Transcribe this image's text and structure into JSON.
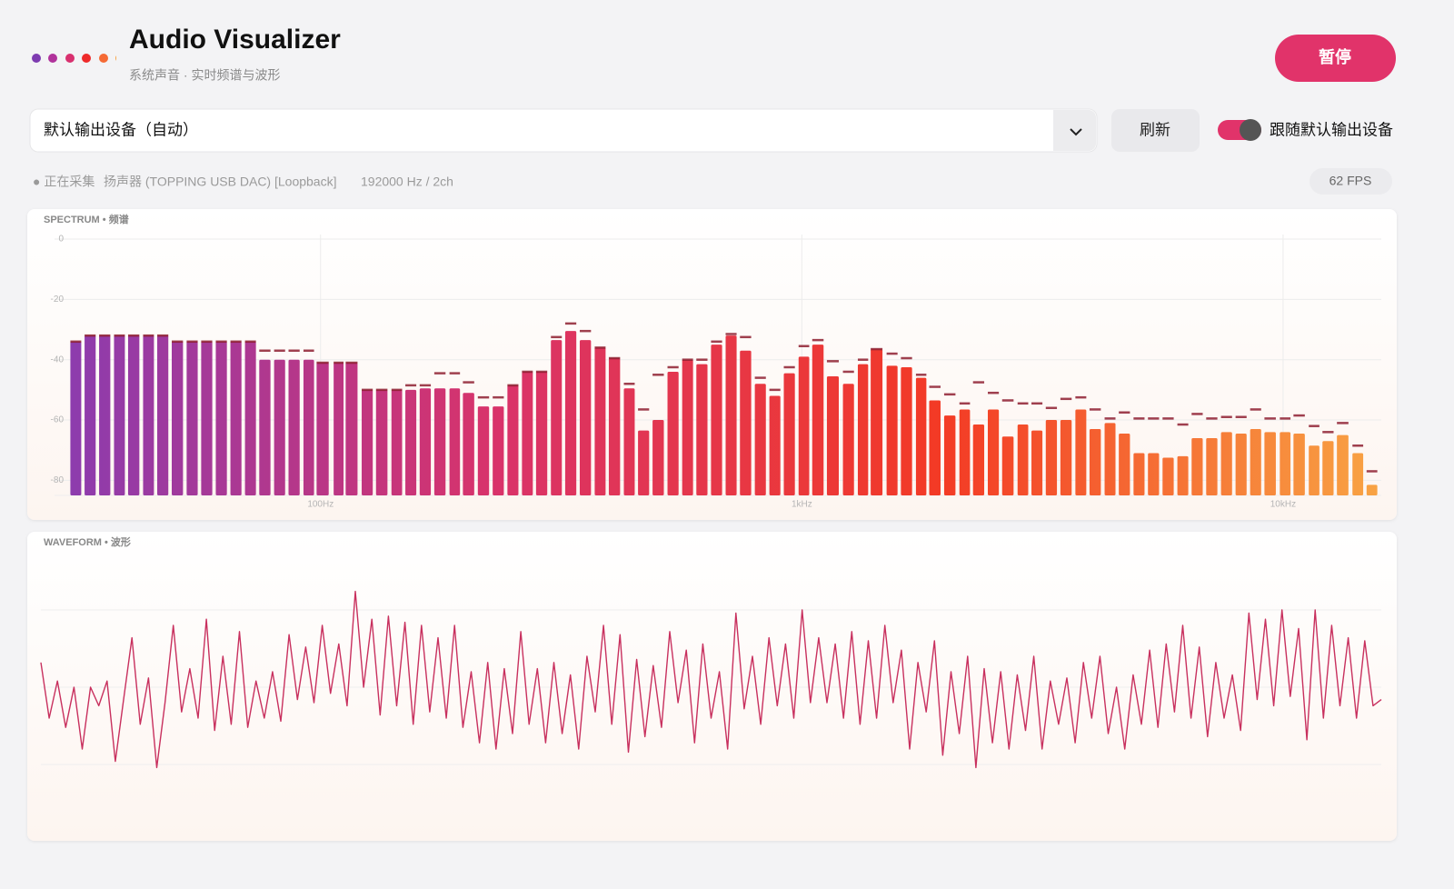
{
  "header": {
    "title": "Audio Visualizer",
    "subtitle": "系统声音 · 实时频谱与波形",
    "pause_button": "暂停"
  },
  "controls": {
    "device": "默认输出设备（自动）",
    "refresh_button": "刷新",
    "follow_default_label": "跟随默认输出设备",
    "follow_default": true
  },
  "status": {
    "capturing": "● 正在采集",
    "device": "扬声器 (TOPPING USB DAC) [Loopback]",
    "format": "192000 Hz / 2ch",
    "fps": "62 FPS"
  },
  "chart_data": [
    {
      "type": "bar",
      "title": "SPECTRUM • 频谱",
      "x": [
        31.0,
        33.2,
        35.6,
        38.2,
        40.9,
        43.9,
        47.0,
        50.4,
        54.1,
        58.0,
        62.2,
        66.7,
        71.5,
        76.6,
        82.2,
        88.1,
        94.5,
        101,
        109,
        116,
        125,
        134,
        144,
        154,
        165,
        177,
        190,
        203,
        218,
        234,
        251,
        269,
        288,
        309,
        331,
        355,
        381,
        408,
        438,
        469,
        503,
        540,
        579,
        620,
        665,
        713,
        764,
        820,
        879,
        942,
        1010,
        1080,
        1160,
        1250,
        1340,
        1430,
        1540,
        1650,
        1770,
        1890,
        2030,
        2180,
        2330,
        2500,
        2680,
        2880,
        3080,
        3300,
        3540,
        3800,
        4070,
        4370,
        4680,
        5020,
        5380,
        5770,
        6190,
        6630,
        7110,
        7630,
        8180,
        8770,
        9400,
        10100,
        10800,
        11600,
        12400,
        13300,
        14300,
        15300
      ],
      "values": [
        -34,
        -32,
        -32,
        -32,
        -32,
        -32,
        -32,
        -34,
        -34,
        -34,
        -34,
        -34,
        -34,
        -40,
        -40,
        -40,
        -40,
        -41,
        -41,
        -41,
        -50,
        -50,
        -50,
        -50,
        -49.5,
        -49.5,
        -49.5,
        -51,
        -55.5,
        -55.5,
        -48.5,
        -44,
        -44,
        -33.5,
        -30.5,
        -33.5,
        -36,
        -39.5,
        -49.5,
        -63.5,
        -60,
        -44,
        -40,
        -41.5,
        -35,
        -32,
        -37,
        -48,
        -52,
        -44.5,
        -39,
        -35,
        -45.5,
        -48,
        -41.5,
        -36.5,
        -42,
        -42.5,
        -46,
        -53.5,
        -58.5,
        -56.5,
        -61.5,
        -56.5,
        -65.5,
        -61.5,
        -63.5,
        -60,
        -60,
        -56.5,
        -63,
        -61,
        -64.5,
        -71,
        -71,
        -72.5,
        -72,
        -66,
        -66,
        -64,
        -64.5,
        -63,
        -64,
        -64,
        -64.5,
        -68.5,
        -67,
        -65,
        -71,
        -81.5
      ],
      "peak_values": [
        -34,
        -32,
        -32,
        -32,
        -32,
        -32,
        -32,
        -34,
        -34,
        -34,
        -34,
        -34,
        -34,
        -37,
        -37,
        -37,
        -37,
        -41,
        -41,
        -41,
        -50,
        -50,
        -50,
        -48.5,
        -48.5,
        -44.5,
        -44.5,
        -47.5,
        -52.5,
        -52.5,
        -48.5,
        -44,
        -44,
        -32.5,
        -28,
        -30.5,
        -36,
        -39.5,
        -48,
        -56.5,
        -45,
        -42.5,
        -40,
        -40,
        -34,
        -31.5,
        -32.5,
        -46,
        -50,
        -42.5,
        -35.5,
        -33.5,
        -40.5,
        -44,
        -40,
        -36.5,
        -38,
        -39.5,
        -45,
        -49,
        -51.5,
        -54.5,
        -47.5,
        -51,
        -53.5,
        -54.5,
        -54.5,
        -56,
        -53,
        -52.5,
        -56.5,
        -59.5,
        -57.5,
        -59.5,
        -59.5,
        -59.5,
        -61.5,
        -58,
        -59.5,
        -59,
        -59,
        -56.5,
        -59.5,
        -59.5,
        -58.5,
        -62,
        -64,
        -61,
        -68.5,
        -77
      ],
      "colors": [
        "#8a3cb0",
        "#d9336a",
        "#f33a25",
        "#f8a444"
      ],
      "peak_color": "#8e1f30",
      "xscale": "log",
      "xlim": [
        28,
        16000
      ],
      "xticks": [
        {
          "value": 100,
          "label": "100Hz"
        },
        {
          "value": 1000,
          "label": "1kHz"
        },
        {
          "value": 10000,
          "label": "10kHz"
        }
      ],
      "ylim": [
        -85,
        1.5
      ],
      "yticks": [
        0,
        -20,
        -40,
        -60,
        -80
      ],
      "grid": true
    },
    {
      "type": "line",
      "title": "WAVEFORM • 波形",
      "color": "#c8305e",
      "values": [
        0.08,
        -0.1,
        0.02,
        -0.13,
        0.0,
        -0.2,
        0.0,
        -0.06,
        0.02,
        -0.24,
        -0.04,
        0.16,
        -0.12,
        0.03,
        -0.26,
        -0.05,
        0.2,
        -0.08,
        0.06,
        -0.1,
        0.22,
        -0.14,
        0.1,
        -0.12,
        0.18,
        -0.13,
        0.02,
        -0.1,
        0.05,
        -0.11,
        0.17,
        -0.04,
        0.13,
        -0.05,
        0.2,
        -0.02,
        0.14,
        -0.06,
        0.31,
        0.0,
        0.22,
        -0.09,
        0.23,
        -0.06,
        0.21,
        -0.12,
        0.2,
        -0.08,
        0.16,
        -0.1,
        0.2,
        -0.13,
        0.05,
        -0.18,
        0.08,
        -0.2,
        0.06,
        -0.15,
        0.18,
        -0.12,
        0.06,
        -0.18,
        0.08,
        -0.15,
        0.04,
        -0.2,
        0.1,
        -0.08,
        0.2,
        -0.12,
        0.17,
        -0.21,
        0.09,
        -0.16,
        0.07,
        -0.13,
        0.18,
        -0.05,
        0.12,
        -0.18,
        0.14,
        -0.1,
        0.05,
        -0.2,
        0.24,
        -0.07,
        0.1,
        -0.12,
        0.16,
        -0.06,
        0.14,
        -0.1,
        0.25,
        -0.05,
        0.16,
        -0.05,
        0.14,
        -0.1,
        0.18,
        -0.12,
        0.15,
        -0.1,
        0.2,
        -0.05,
        0.12,
        -0.2,
        0.08,
        -0.08,
        0.15,
        -0.22,
        0.05,
        -0.15,
        0.1,
        -0.26,
        0.06,
        -0.18,
        0.05,
        -0.2,
        0.04,
        -0.14,
        0.1,
        -0.2,
        0.02,
        -0.12,
        0.03,
        -0.18,
        0.08,
        -0.1,
        0.1,
        -0.15,
        0.0,
        -0.2,
        0.04,
        -0.12,
        0.12,
        -0.13,
        0.14,
        -0.08,
        0.2,
        -0.1,
        0.13,
        -0.16,
        0.08,
        -0.1,
        0.04,
        -0.14,
        0.24,
        -0.04,
        0.22,
        -0.06,
        0.25,
        -0.03,
        0.19,
        -0.17,
        0.25,
        -0.1,
        0.2,
        -0.06,
        0.16,
        -0.1,
        0.15,
        -0.06,
        -0.04
      ],
      "ylim": [
        -0.4,
        0.4
      ],
      "yticks": [
        -0.25,
        0,
        0.25
      ],
      "grid": true
    }
  ]
}
